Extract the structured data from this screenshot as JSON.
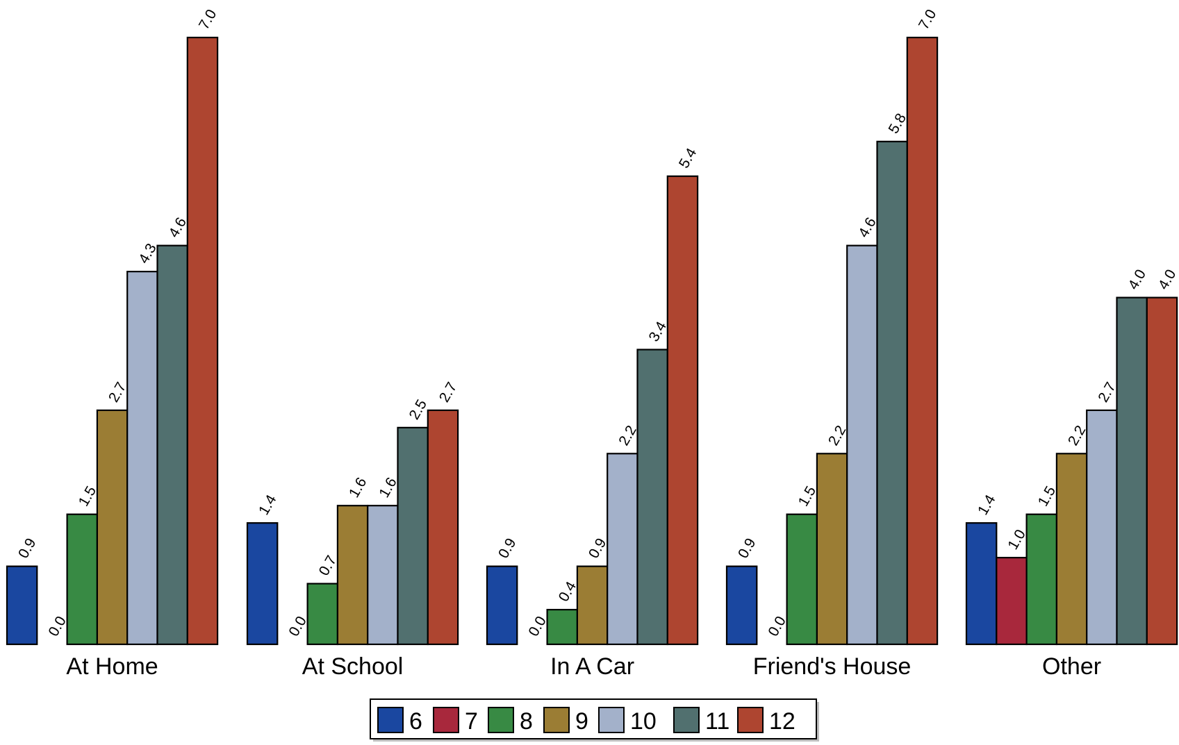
{
  "chart_data": {
    "type": "bar",
    "categories": [
      "At Home",
      "At School",
      "In A Car",
      "Friend's House",
      "Other"
    ],
    "series": [
      {
        "name": "6",
        "color": "#1a47a0",
        "values": [
          0.9,
          1.4,
          0.9,
          0.9,
          1.4
        ]
      },
      {
        "name": "7",
        "color": "#a8283c",
        "values": [
          0.0,
          0.0,
          0.0,
          0.0,
          1.0
        ]
      },
      {
        "name": "8",
        "color": "#388a44",
        "values": [
          1.5,
          0.7,
          0.4,
          1.5,
          1.5
        ]
      },
      {
        "name": "9",
        "color": "#9b7d34",
        "values": [
          2.7,
          1.6,
          0.9,
          2.2,
          2.2
        ]
      },
      {
        "name": "10",
        "color": "#a3b1ca",
        "values": [
          4.3,
          1.6,
          2.2,
          4.6,
          2.7
        ]
      },
      {
        "name": "11",
        "color": "#51706f",
        "values": [
          4.6,
          2.5,
          3.4,
          5.8,
          4.0
        ]
      },
      {
        "name": "12",
        "color": "#ae4530",
        "values": [
          7.0,
          2.7,
          5.4,
          7.0,
          4.0
        ]
      }
    ],
    "value_labels": [
      [
        "0.9",
        "1.4",
        "0.9",
        "0.9",
        "1.4"
      ],
      [
        "0.0",
        "0.0",
        "0.0",
        "0.0",
        "1.0"
      ],
      [
        "1.5",
        "0.7",
        "0.4",
        "1.5",
        "1.5"
      ],
      [
        "2.7",
        "1.6",
        "0.9",
        "2.2",
        "2.2"
      ],
      [
        "4.3",
        "1.6",
        "2.2",
        "4.6",
        "2.7"
      ],
      [
        "4.6",
        "2.5",
        "3.4",
        "5.8",
        "4.0"
      ],
      [
        "7.0",
        "2.7",
        "5.4",
        "7.0",
        "4.0"
      ]
    ],
    "ylim": [
      0,
      7.0
    ],
    "title": "",
    "xlabel": "",
    "ylabel": "",
    "grid": false,
    "legend_position": "bottom"
  }
}
